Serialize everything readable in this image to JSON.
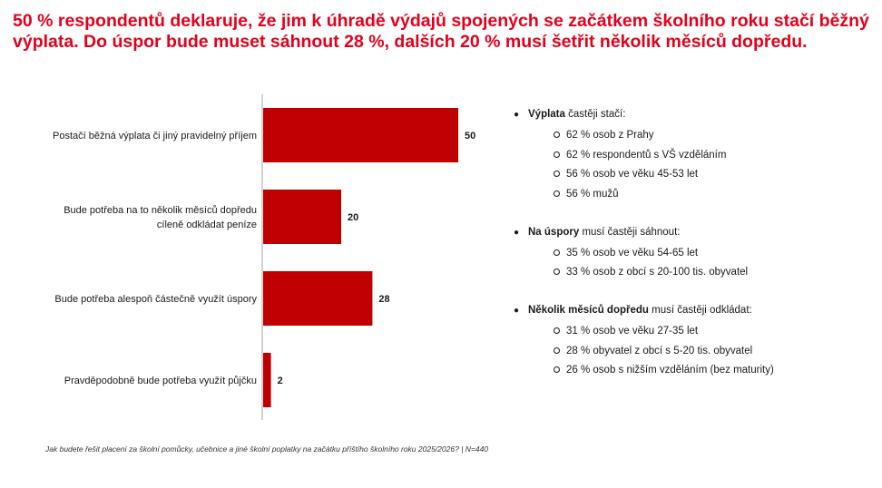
{
  "title": "50 % respondentů deklaruje, že jim k úhradě výdajů spojených se začátkem školního roku stačí běžný výplata. Do úspor bude muset sáhnout 28 %, dalších 20 % musí šetřit několik měsíců dopředu.",
  "chart_data": {
    "type": "bar",
    "orientation": "horizontal",
    "categories": [
      [
        "Postačí běžná výplata či jiný pravidelný příjem"
      ],
      [
        "Bude potřeba na to několik měsíců dopředu",
        "cíleně odkládat peníze"
      ],
      [
        "Bude potřeba alespoň částečně využít úspory"
      ],
      [
        "Pravděpodobně bude potřeba využít půjčku"
      ]
    ],
    "values": [
      50,
      20,
      28,
      2
    ],
    "data_labels": [
      "50",
      "20",
      "28",
      "2"
    ],
    "xlim": [
      0,
      50
    ],
    "grid": false,
    "bar_color": "#c00000"
  },
  "notes": [
    {
      "bold": "Výplata",
      "rest": " častěji stačí:",
      "items": [
        "62 % osob z Prahy",
        "62 % respondentů s VŠ vzděláním",
        "56 % osob ve věku 45-53 let",
        "56 % mužů"
      ]
    },
    {
      "bold": "Na úspory",
      "rest": " musí častěji sáhnout:",
      "items": [
        "35 % osob ve věku 54-65 let",
        "33 % osob z obcí s 20-100 tis. obyvatel"
      ]
    },
    {
      "bold": "Několik měsíců dopředu",
      "rest": " musí častěji odkládat:",
      "items": [
        "31 % osob ve věku 27-35 let",
        "28 % obyvatel z obcí s 5-20 tis. obyvatel",
        "26 % osob s nižším vzděláním (bez maturity)"
      ]
    }
  ],
  "footnote": "Jak budete řešit placení za školní pomůcky, učebnice a jiné školní poplatky na začátku příštího školního roku 2025/2026? | N=440"
}
